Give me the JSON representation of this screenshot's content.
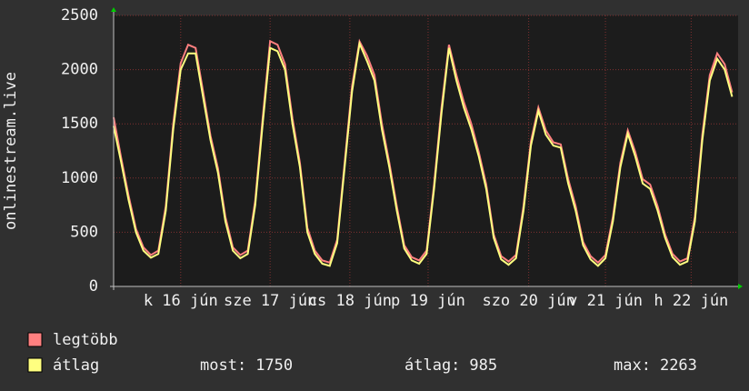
{
  "chart_data": {
    "type": "line",
    "ylabel": "onlinestream.live",
    "ylim": [
      0,
      2500
    ],
    "yticks": [
      0,
      500,
      1000,
      1500,
      2000,
      2500
    ],
    "xlim": [
      0,
      83.8
    ],
    "xticks": [
      {
        "value": 9.0,
        "label": "k 16 jún"
      },
      {
        "value": 21.0,
        "label": "sze 17 jún"
      },
      {
        "value": 31.7,
        "label": "cs 18 jún"
      },
      {
        "value": 42.2,
        "label": "p 19 jún"
      },
      {
        "value": 55.7,
        "label": "szo 20 jún"
      },
      {
        "value": 66.0,
        "label": "v 21 jún"
      },
      {
        "value": 77.5,
        "label": "h 22 jún"
      }
    ],
    "grid": true,
    "series": [
      {
        "name": "legtöbb",
        "color": "#ff8080",
        "values": [
          1560,
          1190,
          840,
          530,
          360,
          290,
          330,
          740,
          1500,
          2060,
          2230,
          2200,
          1800,
          1390,
          1090,
          640,
          360,
          290,
          330,
          790,
          1550,
          2263,
          2230,
          2050,
          1550,
          1140,
          540,
          330,
          240,
          220,
          430,
          1140,
          1850,
          2260,
          2130,
          1950,
          1500,
          1140,
          740,
          380,
          270,
          240,
          330,
          940,
          1650,
          2230,
          1950,
          1700,
          1500,
          1240,
          940,
          480,
          280,
          230,
          290,
          740,
          1340,
          1650,
          1440,
          1330,
          1310,
          990,
          740,
          410,
          280,
          220,
          290,
          640,
          1140,
          1440,
          1240,
          990,
          940,
          740,
          480,
          300,
          230,
          260,
          640,
          1400,
          1950,
          2150,
          2050,
          1790
        ]
      },
      {
        "name": "átlag",
        "color": "#ffff80",
        "values": [
          1480,
          1150,
          800,
          500,
          330,
          265,
          300,
          700,
          1450,
          2000,
          2150,
          2150,
          1750,
          1350,
          1050,
          600,
          330,
          260,
          300,
          750,
          1500,
          2200,
          2170,
          2000,
          1500,
          1100,
          500,
          300,
          210,
          190,
          400,
          1100,
          1800,
          2240,
          2080,
          1900,
          1450,
          1100,
          700,
          350,
          240,
          210,
          300,
          900,
          1600,
          2200,
          1900,
          1650,
          1450,
          1200,
          900,
          450,
          250,
          200,
          260,
          700,
          1300,
          1620,
          1400,
          1300,
          1280,
          950,
          700,
          380,
          250,
          190,
          260,
          600,
          1100,
          1410,
          1200,
          950,
          900,
          700,
          450,
          270,
          200,
          230,
          600,
          1350,
          1900,
          2100,
          2000,
          1750
        ]
      }
    ],
    "stats": [
      {
        "label": "most:",
        "value": 1750
      },
      {
        "label": "átlag:",
        "value": 985
      },
      {
        "label": "max:",
        "value": 2263
      }
    ]
  }
}
